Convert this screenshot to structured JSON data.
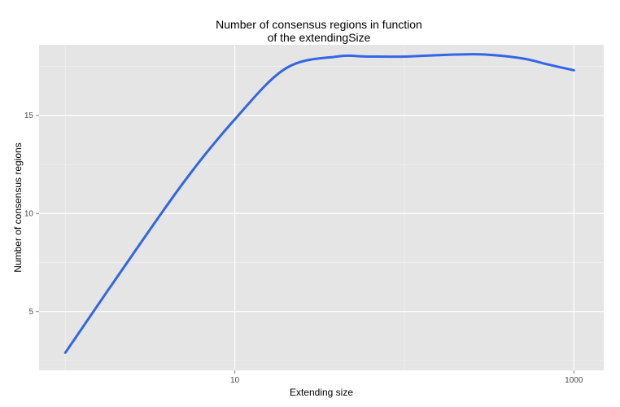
{
  "chart_data": {
    "type": "line",
    "title_lines": [
      "Number of consensus regions in function",
      "of the extendingSize"
    ],
    "xlabel": "Extending size",
    "ylabel": "Number of consensus regions",
    "x_scale": "log10",
    "xlim": [
      0.7,
      1500
    ],
    "ylim": [
      2.0,
      18.6
    ],
    "x_ticks": [
      10,
      1000
    ],
    "x_tick_labels": [
      "10",
      "1000"
    ],
    "y_ticks": [
      5,
      10,
      15
    ],
    "y_tick_labels": [
      "5",
      "10",
      "15"
    ],
    "grid": true,
    "legend": "none",
    "colors": {
      "panel_background": "#e5e5e5",
      "grid_major": "#ffffff",
      "grid_minor": "#f2f2f2",
      "line": "#3366e6",
      "tick_mark": "#7f7f7f"
    },
    "series": [
      {
        "x": [
          1,
          2,
          5,
          10,
          20,
          40,
          60,
          100,
          200,
          300,
          500,
          700,
          1000
        ],
        "y": [
          2.9,
          6.7,
          11.6,
          14.8,
          17.4,
          18.0,
          18.0,
          18.0,
          18.1,
          18.1,
          17.9,
          17.6,
          17.3
        ]
      }
    ]
  }
}
